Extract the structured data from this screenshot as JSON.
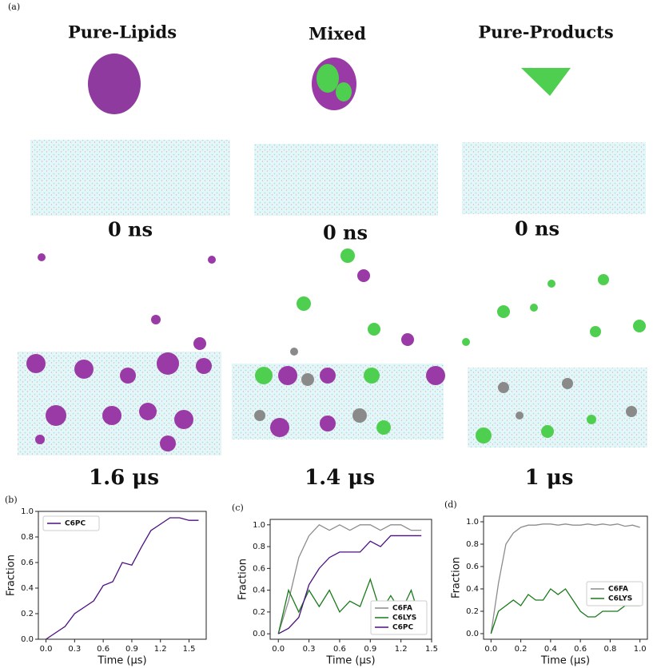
{
  "figure_label": "(a)",
  "columns": [
    {
      "title": "Pure-Lipids",
      "start": "0 ns",
      "end": "1.6 μs"
    },
    {
      "title": "Mixed",
      "start": "0 ns",
      "end": "1.4 μs"
    },
    {
      "title": "Pure-Products",
      "start": "0 ns",
      "end": "1 μs"
    }
  ],
  "chart_data": [
    {
      "type": "line",
      "panel": "(b)",
      "xlabel": "Time (μs)",
      "ylabel": "Fraction",
      "legend": "upper left",
      "x": [
        0,
        0.1,
        0.2,
        0.3,
        0.4,
        0.5,
        0.6,
        0.7,
        0.8,
        0.9,
        1.0,
        1.1,
        1.2,
        1.3,
        1.4,
        1.5,
        1.6
      ],
      "series": [
        {
          "name": "C6PC",
          "color": "#4b0f80",
          "values": [
            0,
            0.05,
            0.1,
            0.2,
            0.25,
            0.3,
            0.42,
            0.45,
            0.6,
            0.58,
            0.72,
            0.85,
            0.9,
            0.95,
            0.95,
            0.93,
            0.93
          ]
        }
      ],
      "xlim": [
        -0.08,
        1.68
      ],
      "ylim": [
        0,
        1.0
      ],
      "xticks": [
        {
          "value": 0,
          "label": "0.0"
        },
        0.3,
        0.6,
        0.9,
        1.2,
        1.5
      ],
      "yticks": [
        {
          "value": 0,
          "label": "0.0"
        },
        0.2,
        0.4,
        0.6,
        0.8,
        {
          "value": 1,
          "label": "1.0"
        }
      ]
    },
    {
      "type": "line",
      "panel": "(c)",
      "xlabel": "Time (μs)",
      "ylabel": "Fraction",
      "legend": "lower right",
      "x": [
        0,
        0.1,
        0.2,
        0.3,
        0.4,
        0.5,
        0.6,
        0.7,
        0.8,
        0.9,
        1.0,
        1.1,
        1.2,
        1.3,
        1.4
      ],
      "series": [
        {
          "name": "C6FA",
          "color": "#8c8c8c",
          "values": [
            0,
            0.3,
            0.7,
            0.9,
            1.0,
            0.95,
            1.0,
            0.95,
            1.0,
            1.0,
            0.95,
            1.0,
            1.0,
            0.95,
            0.95
          ]
        },
        {
          "name": "C6LYS",
          "color": "#1a7a1a",
          "values": [
            0,
            0.4,
            0.2,
            0.4,
            0.25,
            0.4,
            0.2,
            0.3,
            0.25,
            0.5,
            0.2,
            0.35,
            0.2,
            0.4,
            0.1
          ]
        },
        {
          "name": "C6PC",
          "color": "#4b0f80",
          "values": [
            0,
            0.05,
            0.15,
            0.45,
            0.6,
            0.7,
            0.75,
            0.75,
            0.75,
            0.85,
            0.8,
            0.9,
            0.9,
            0.9,
            0.9
          ]
        }
      ],
      "xlim": [
        -0.08,
        1.5
      ],
      "ylim": [
        -0.05,
        1.05
      ],
      "xticks": [
        {
          "value": 0,
          "label": "0.0"
        },
        0.3,
        0.6,
        0.9,
        1.2,
        1.5
      ],
      "yticks": [
        {
          "value": 0,
          "label": "0.0"
        },
        0.2,
        0.4,
        0.6,
        0.8,
        {
          "value": 1,
          "label": "1.0"
        }
      ]
    },
    {
      "type": "line",
      "panel": "(d)",
      "xlabel": "Time (μs)",
      "ylabel": "Fraction",
      "legend": "center right",
      "x": [
        0,
        0.05,
        0.1,
        0.15,
        0.2,
        0.25,
        0.3,
        0.35,
        0.4,
        0.45,
        0.5,
        0.55,
        0.6,
        0.65,
        0.7,
        0.75,
        0.8,
        0.85,
        0.9,
        0.95,
        1.0
      ],
      "series": [
        {
          "name": "C6FA",
          "color": "#8c8c8c",
          "values": [
            0,
            0.45,
            0.8,
            0.9,
            0.95,
            0.97,
            0.97,
            0.98,
            0.98,
            0.97,
            0.98,
            0.97,
            0.97,
            0.98,
            0.97,
            0.98,
            0.97,
            0.98,
            0.96,
            0.97,
            0.95
          ]
        },
        {
          "name": "C6LYS",
          "color": "#1a7a1a",
          "values": [
            0,
            0.2,
            0.25,
            0.3,
            0.25,
            0.35,
            0.3,
            0.3,
            0.4,
            0.35,
            0.4,
            0.3,
            0.2,
            0.15,
            0.15,
            0.2,
            0.2,
            0.2,
            0.25,
            0.25,
            0.25
          ]
        }
      ],
      "xlim": [
        -0.05,
        1.05
      ],
      "ylim": [
        -0.05,
        1.05
      ],
      "xticks": [
        {
          "value": 0,
          "label": "0.0"
        },
        0.2,
        0.4,
        0.6,
        0.8,
        {
          "value": 1,
          "label": "1.0"
        }
      ],
      "yticks": [
        {
          "value": 0,
          "label": "0.0"
        },
        0.2,
        0.4,
        0.6,
        0.8,
        {
          "value": 1,
          "label": "1.0"
        }
      ]
    }
  ]
}
